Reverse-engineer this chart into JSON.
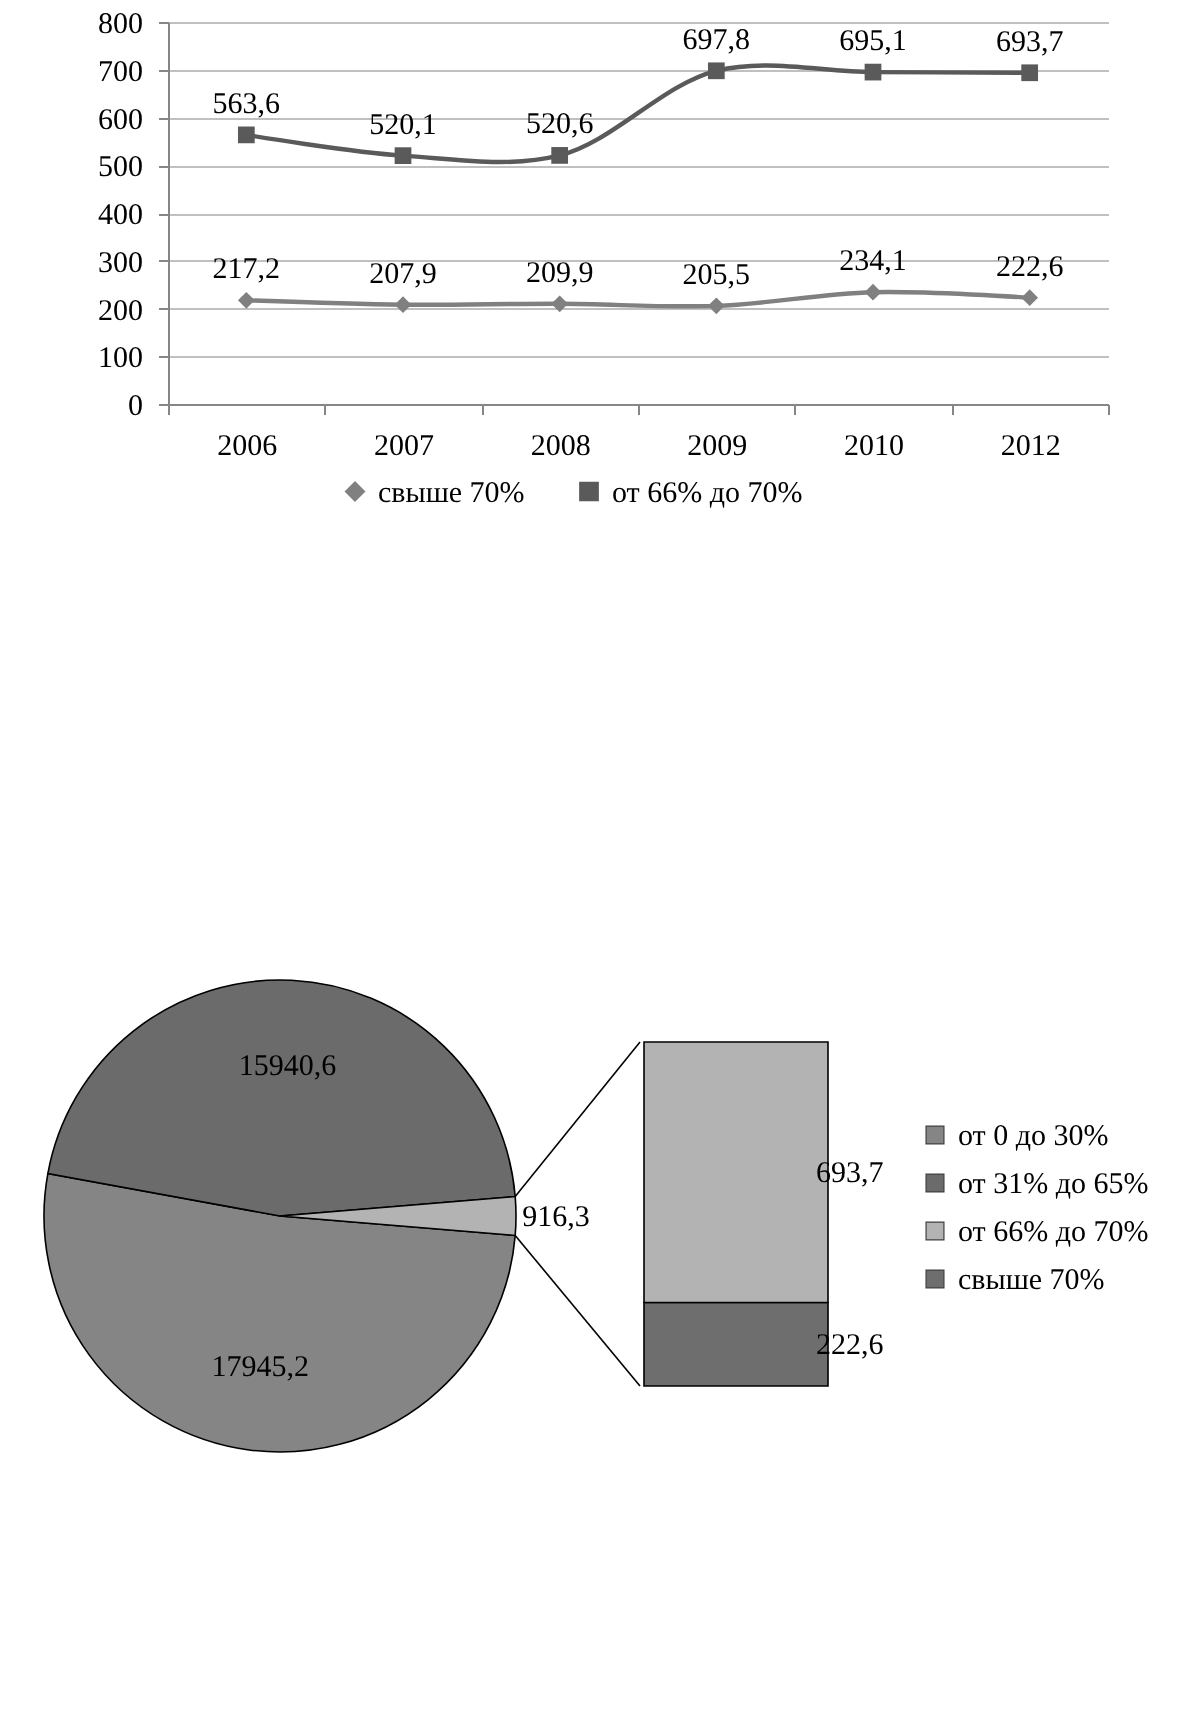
{
  "chart_data": [
    {
      "type": "line",
      "categories": [
        "2006",
        "2007",
        "2008",
        "2009",
        "2010",
        "2012"
      ],
      "series": [
        {
          "name": "свыше 70%",
          "color": "#808080",
          "marker": "diamond",
          "values": [
            217.2,
            207.9,
            209.9,
            205.5,
            234.1,
            222.6
          ],
          "value_labels": [
            "217,2",
            "207,9",
            "209,9",
            "205,5",
            "234,1",
            "222,6"
          ]
        },
        {
          "name": "от 66% до 70%",
          "color": "#5a5a5a",
          "marker": "square",
          "values": [
            563.6,
            520.1,
            520.6,
            697.8,
            695.1,
            693.7
          ],
          "value_labels": [
            "563,6",
            "520,1",
            "520,6",
            "697,8",
            "695,1",
            "693,7"
          ]
        }
      ],
      "ylim": [
        0,
        800
      ],
      "yticks": [
        0,
        100,
        200,
        300,
        400,
        500,
        600,
        700,
        800
      ],
      "grid": "y",
      "legend": "bottom"
    },
    {
      "type": "pie",
      "categories": [
        "от 0 до 30%",
        "от 31% до 65%",
        null
      ],
      "values": [
        17945.2,
        15940.6,
        916.3
      ],
      "value_labels": [
        "17945,2",
        "15940,6",
        "916,3"
      ],
      "colors": [
        "#858585",
        "#6b6b6b",
        "#b3b3b3"
      ],
      "legend": "right"
    },
    {
      "type": "bar",
      "stacked": true,
      "categories": [
        null
      ],
      "series": [
        {
          "name": "свыше 70%",
          "color": "#6e6e6e",
          "values": [
            222.6
          ],
          "value_labels": [
            "222,6"
          ]
        },
        {
          "name": "от 66% до 70%",
          "color": "#b3b3b3",
          "values": [
            693.7
          ],
          "value_labels": [
            "693,7"
          ]
        }
      ],
      "tick_labels": false,
      "legend": "right"
    }
  ]
}
